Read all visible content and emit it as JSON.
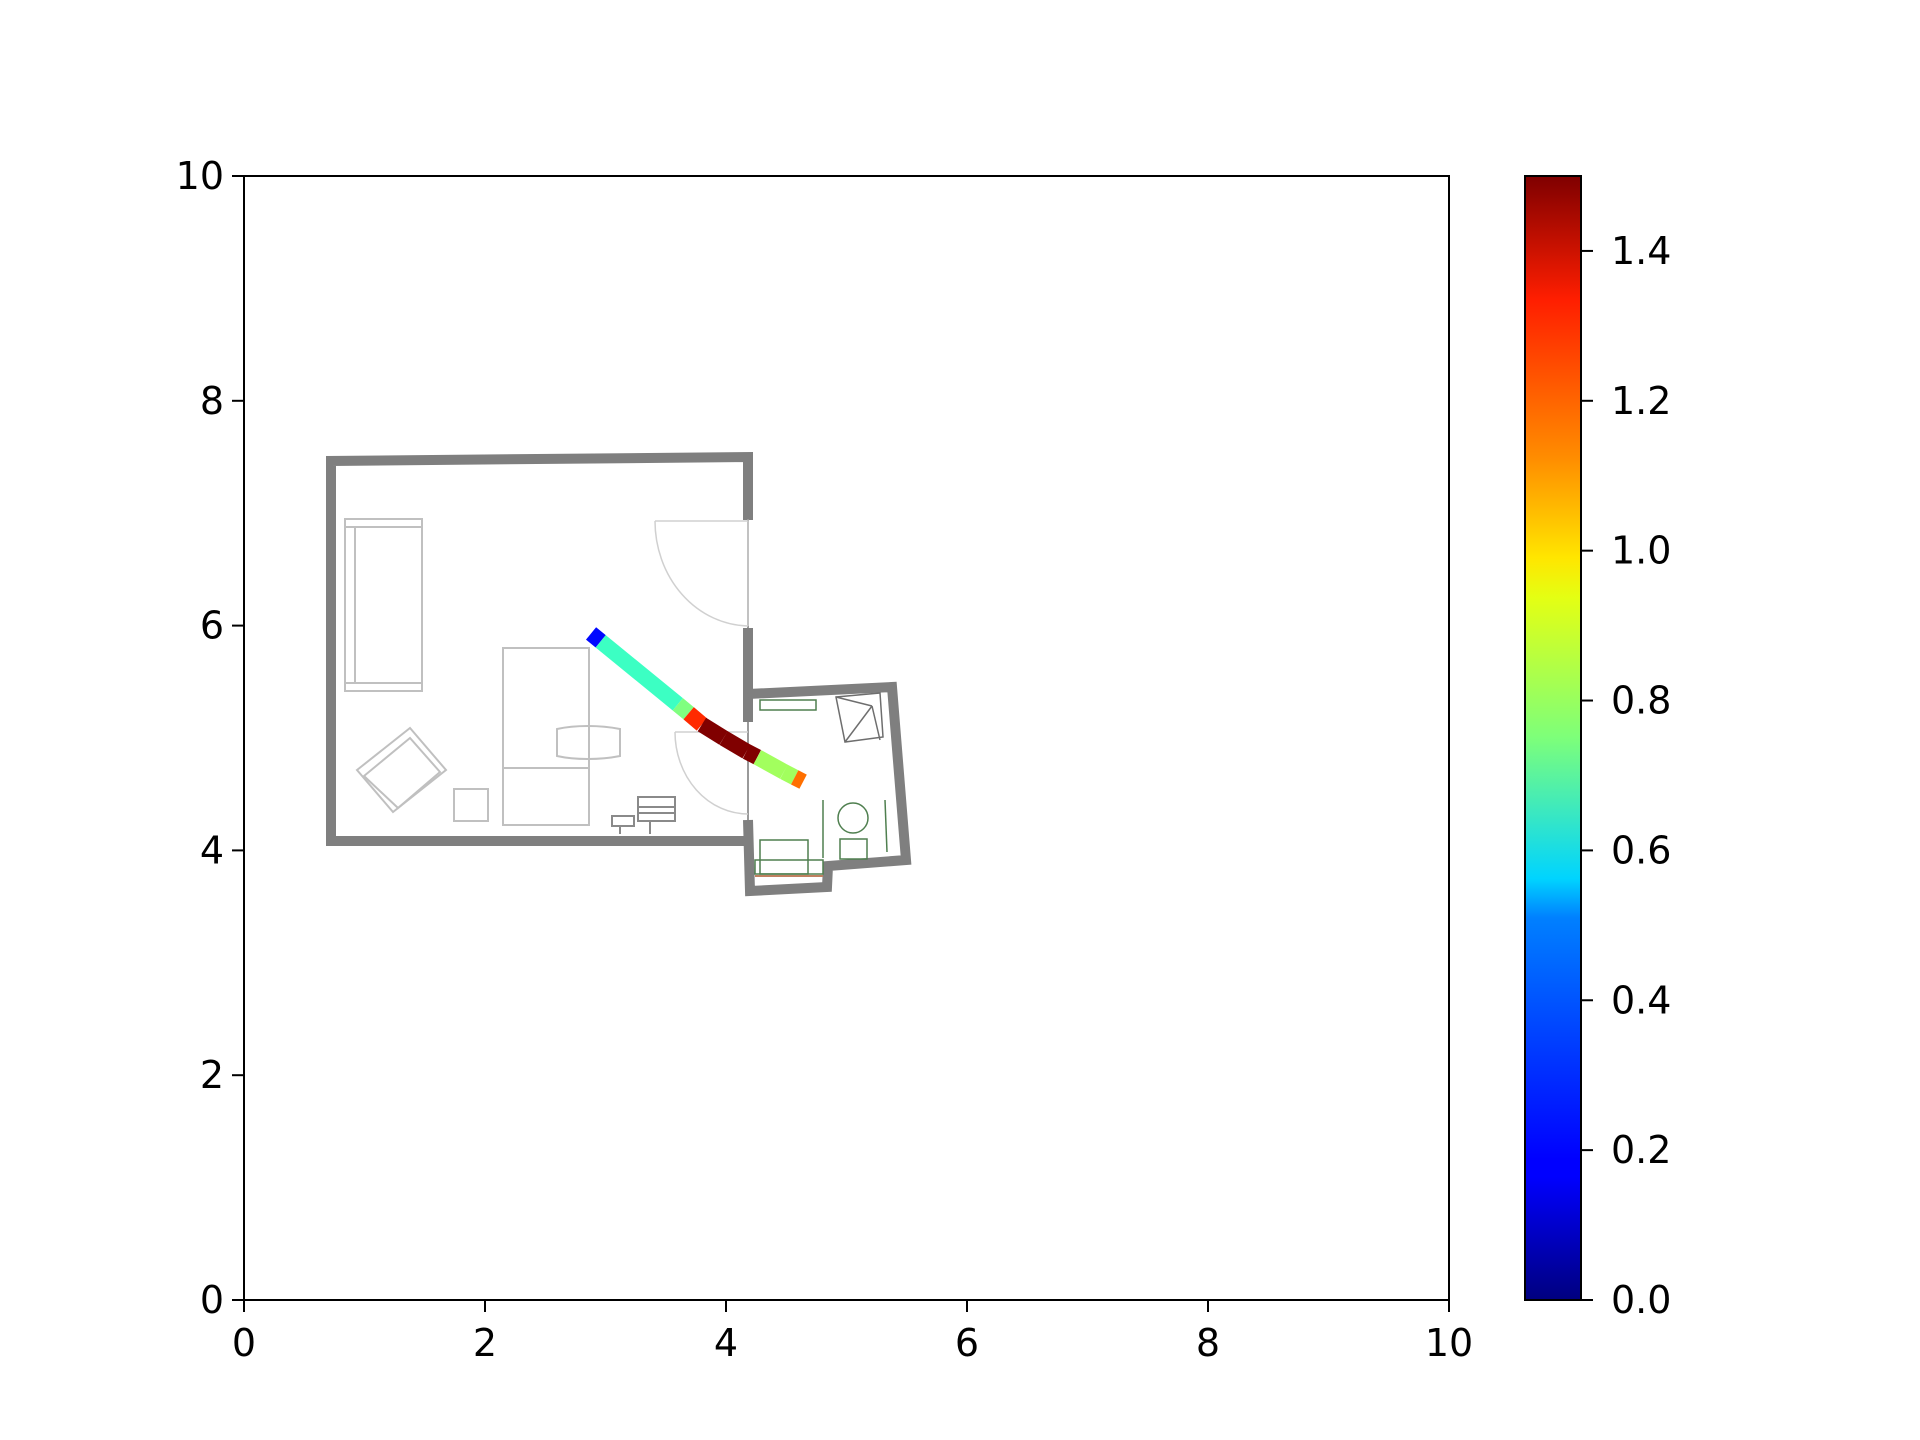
{
  "chart_data": {
    "type": "scatter",
    "title": "",
    "xlabel": "",
    "ylabel": "",
    "xlim": [
      0,
      10
    ],
    "ylim": [
      0,
      10
    ],
    "grid": false,
    "x_ticks": [
      {
        "value": 0,
        "label": "0"
      },
      {
        "value": 2,
        "label": "2"
      },
      {
        "value": 4,
        "label": "4"
      },
      {
        "value": 6,
        "label": "6"
      },
      {
        "value": 8,
        "label": "8"
      },
      {
        "value": 10,
        "label": "10"
      }
    ],
    "y_ticks": [
      {
        "value": 0,
        "label": "0"
      },
      {
        "value": 2,
        "label": "2"
      },
      {
        "value": 4,
        "label": "4"
      },
      {
        "value": 6,
        "label": "6"
      },
      {
        "value": 8,
        "label": "8"
      },
      {
        "value": 10,
        "label": "10"
      }
    ],
    "colorbar": {
      "colormap": "jet",
      "range": [
        0.0,
        1.5
      ],
      "ticks": [
        {
          "value": 0.0,
          "label": "0.0"
        },
        {
          "value": 0.2,
          "label": "0.2"
        },
        {
          "value": 0.4,
          "label": "0.4"
        },
        {
          "value": 0.6,
          "label": "0.6"
        },
        {
          "value": 0.8,
          "label": "0.8"
        },
        {
          "value": 1.0,
          "label": "1.0"
        },
        {
          "value": 1.2,
          "label": "1.2"
        },
        {
          "value": 1.4,
          "label": "1.4"
        }
      ]
    },
    "trajectory": [
      {
        "x": 2.88,
        "y": 5.93,
        "speed": 0.2
      },
      {
        "x": 2.96,
        "y": 5.86,
        "speed": 0.65
      },
      {
        "x": 3.6,
        "y": 5.3,
        "speed": 0.75
      },
      {
        "x": 3.69,
        "y": 5.22,
        "speed": 1.25
      },
      {
        "x": 3.8,
        "y": 5.12,
        "speed": 1.5
      },
      {
        "x": 3.98,
        "y": 5.0,
        "speed": 1.5
      },
      {
        "x": 4.17,
        "y": 4.88,
        "speed": 1.5
      },
      {
        "x": 4.26,
        "y": 4.83,
        "speed": 0.8
      },
      {
        "x": 4.48,
        "y": 4.7,
        "speed": 0.8
      },
      {
        "x": 4.57,
        "y": 4.65,
        "speed": 1.15
      }
    ]
  },
  "floor_plan": {
    "wall_color": "#7f7f7f",
    "furniture_color": "#c0c0c0",
    "fixture_color": "#4f7f4f"
  }
}
